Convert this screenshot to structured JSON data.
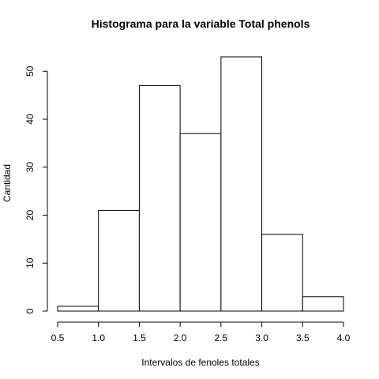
{
  "chart_data": {
    "type": "bar",
    "title": "Histograma para la variable Total phenols",
    "xlabel": "Intervalos de fenoles totales",
    "ylabel": "Cantidad",
    "bins": [
      {
        "start": 0.5,
        "end": 1.0,
        "value": 1
      },
      {
        "start": 1.0,
        "end": 1.5,
        "value": 21
      },
      {
        "start": 1.5,
        "end": 2.0,
        "value": 47
      },
      {
        "start": 2.0,
        "end": 2.5,
        "value": 37
      },
      {
        "start": 2.5,
        "end": 3.0,
        "value": 53
      },
      {
        "start": 3.0,
        "end": 3.5,
        "value": 16
      },
      {
        "start": 3.5,
        "end": 4.0,
        "value": 3
      }
    ],
    "xlim": [
      0.5,
      4.0
    ],
    "ylim": [
      0,
      53
    ],
    "x_ticks": [
      "0.5",
      "1.0",
      "1.5",
      "2.0",
      "2.5",
      "3.0",
      "3.5",
      "4.0"
    ],
    "y_ticks": [
      "0",
      "10",
      "20",
      "30",
      "40",
      "50"
    ],
    "grid": false,
    "bar_fill": "#ffffff",
    "bar_stroke": "#000000"
  }
}
